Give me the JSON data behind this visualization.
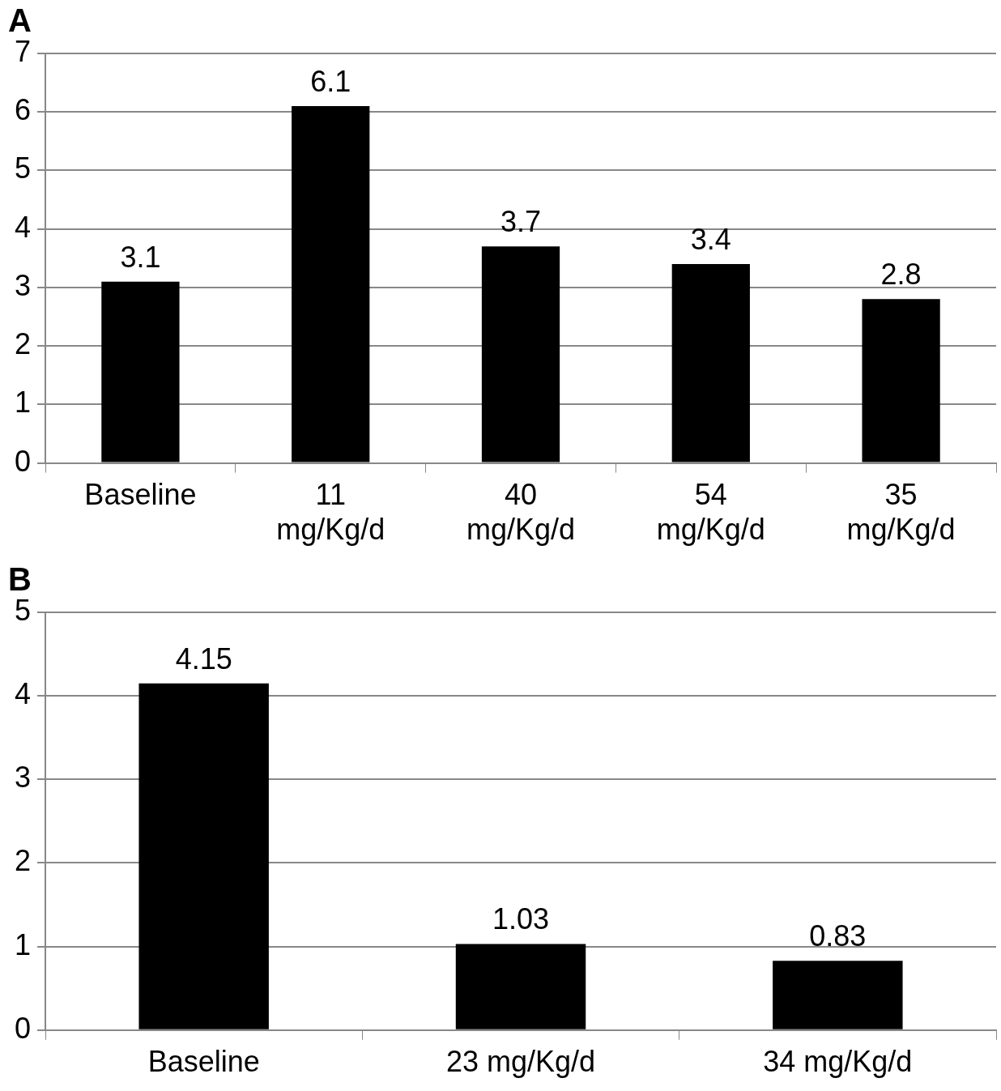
{
  "chart_data": [
    {
      "type": "bar",
      "title": "A",
      "categories": [
        "Baseline",
        "11 mg/Kg/d",
        "40 mg/Kg/d",
        "54 mg/Kg/d",
        "35 mg/Kg/d"
      ],
      "values": [
        3.1,
        6.1,
        3.7,
        3.4,
        2.8
      ],
      "color": "#000000",
      "ylim": [
        0,
        7
      ],
      "yticks": [
        0,
        1,
        2,
        3,
        4,
        5,
        6,
        7
      ],
      "grid": "y",
      "data_labels": true,
      "legend": false
    },
    {
      "type": "bar",
      "title": "B",
      "categories": [
        "Baseline",
        "23 mg/Kg/d",
        "34 mg/Kg/d"
      ],
      "values": [
        4.15,
        1.03,
        0.83
      ],
      "color": "#000000",
      "ylim": [
        0,
        5
      ],
      "yticks": [
        0,
        1,
        2,
        3,
        4,
        5
      ],
      "grid": "y",
      "data_labels": true,
      "legend": false
    }
  ]
}
